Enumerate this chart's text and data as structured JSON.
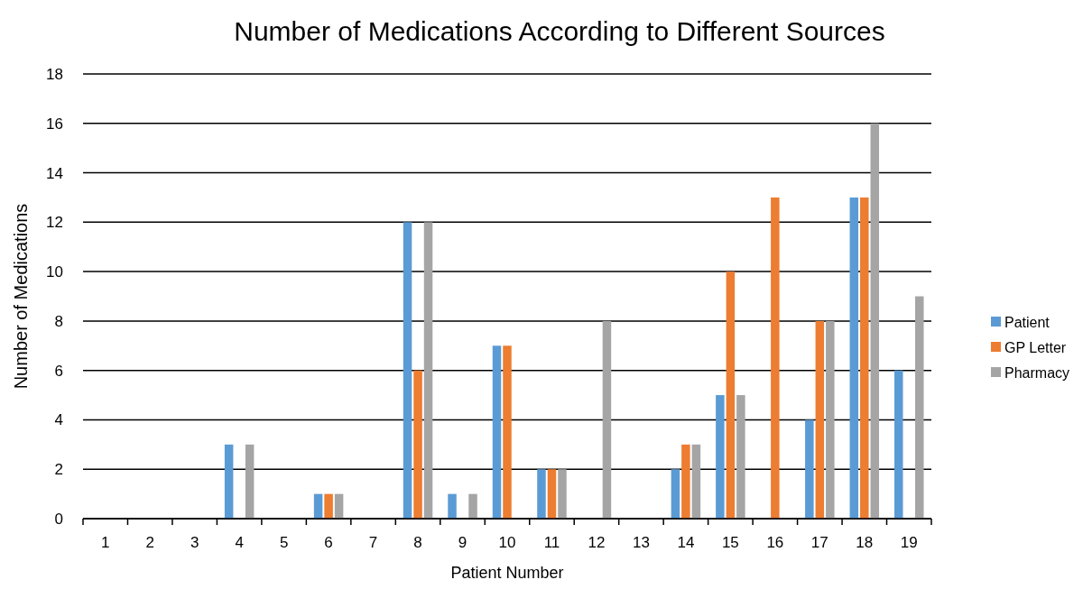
{
  "chart_data": {
    "type": "bar",
    "title": "Number of Medications According to Different Sources",
    "xlabel": "Patient Number",
    "ylabel": "Number of Medications",
    "categories": [
      "1",
      "2",
      "3",
      "4",
      "5",
      "6",
      "7",
      "8",
      "9",
      "10",
      "11",
      "12",
      "13",
      "14",
      "15",
      "16",
      "17",
      "18",
      "19"
    ],
    "series": [
      {
        "name": "Patient",
        "color": "#5b9bd5",
        "values": [
          0,
          0,
          0,
          3,
          0,
          1,
          0,
          12,
          1,
          7,
          2,
          0,
          0,
          2,
          5,
          0,
          4,
          13,
          6
        ]
      },
      {
        "name": "GP Letter",
        "color": "#ed7d31",
        "values": [
          0,
          0,
          0,
          0,
          0,
          1,
          0,
          6,
          0,
          7,
          2,
          0,
          0,
          3,
          10,
          13,
          8,
          13,
          0
        ]
      },
      {
        "name": "Pharmacy",
        "color": "#a5a5a5",
        "values": [
          0,
          0,
          0,
          3,
          0,
          1,
          0,
          12,
          1,
          0,
          2,
          8,
          0,
          3,
          5,
          0,
          8,
          16,
          9
        ]
      }
    ],
    "ylim": [
      0,
      18
    ],
    "yticks": [
      0,
      2,
      4,
      6,
      8,
      10,
      12,
      14,
      16,
      18
    ],
    "grid": "y",
    "legend": "right"
  }
}
